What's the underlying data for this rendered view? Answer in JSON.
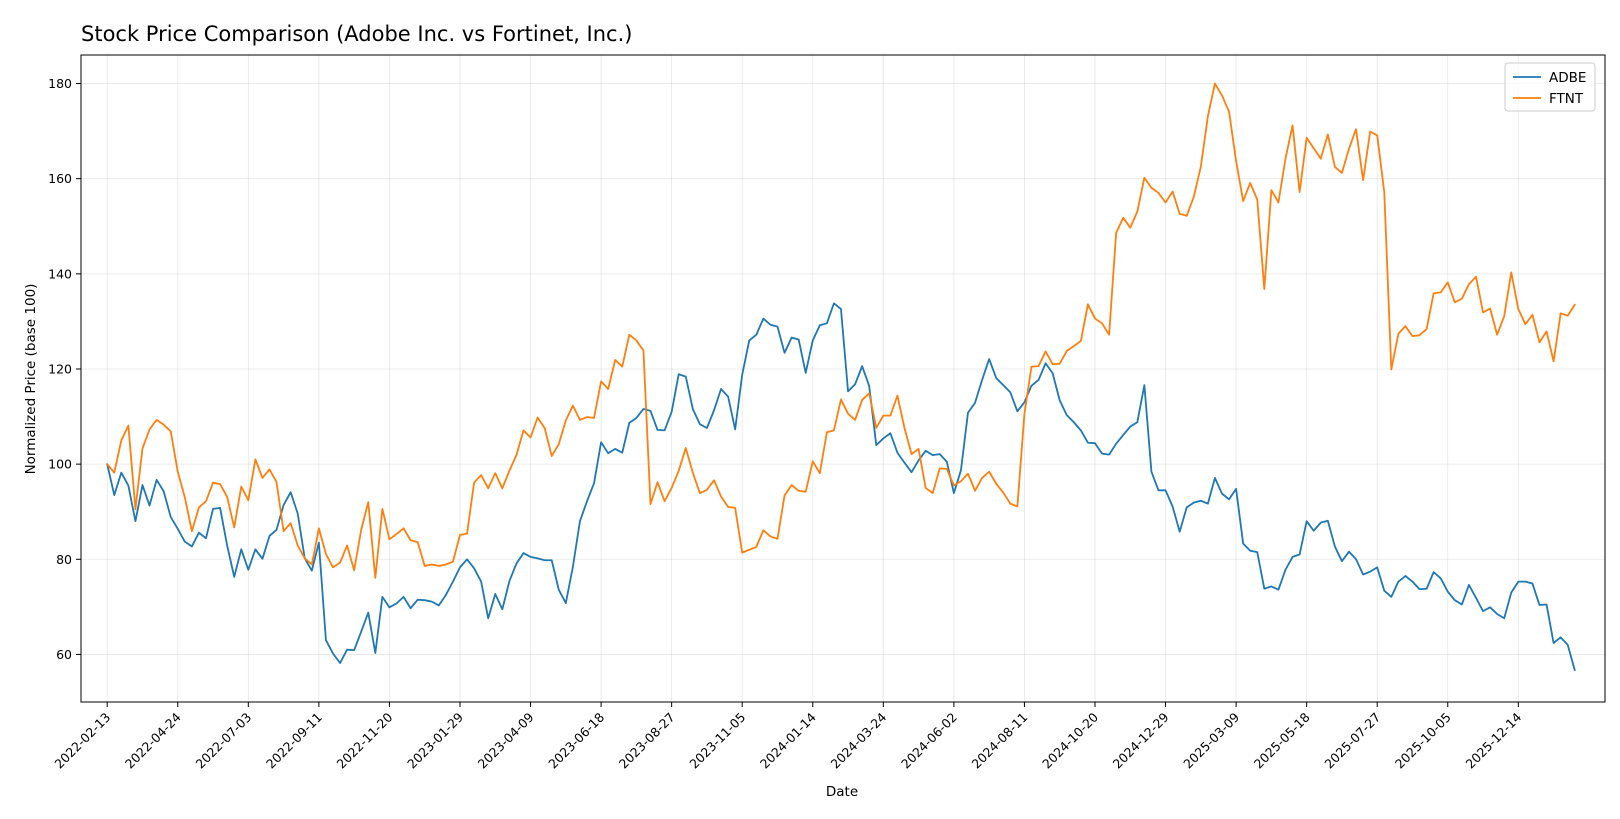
{
  "chart_data": {
    "type": "line",
    "title": "Stock Price Comparison (Adobe Inc. vs Fortinet, Inc.)",
    "xlabel": "Date",
    "ylabel": "Normalized Price (base 100)",
    "ylim": [
      50,
      186
    ],
    "yticks": [
      60,
      80,
      100,
      120,
      140,
      160,
      180
    ],
    "xlim": [
      "2022-01-18",
      "2026-03-10"
    ],
    "xticks": [
      "2022-02-13",
      "2022-04-24",
      "2022-07-03",
      "2022-09-11",
      "2022-11-20",
      "2023-01-29",
      "2023-04-09",
      "2023-06-18",
      "2023-08-27",
      "2023-11-05",
      "2024-01-14",
      "2024-03-24",
      "2024-06-02",
      "2024-08-11",
      "2024-10-20",
      "2024-12-29",
      "2025-03-09",
      "2025-05-18",
      "2025-07-27",
      "2025-10-05",
      "2025-12-14"
    ],
    "grid": true,
    "legend_position": "top-right",
    "x_start": "2022-02-13",
    "x_step_days": 7,
    "series": [
      {
        "name": "ADBE",
        "color": "#1f77b4",
        "values": [
          100.0,
          93.5,
          98.2,
          95.5,
          88.0,
          95.6,
          91.3,
          96.7,
          94.3,
          88.9,
          86.4,
          83.7,
          82.7,
          85.6,
          84.4,
          90.6,
          90.8,
          82.9,
          76.3,
          82.1,
          77.8,
          82.1,
          80.1,
          84.9,
          86.2,
          91.4,
          94.1,
          89.6,
          80.2,
          77.6,
          83.5,
          63.0,
          60.2,
          58.2,
          61.0,
          60.9,
          64.8,
          68.8,
          60.3,
          72.1,
          69.9,
          70.7,
          72.1,
          69.7,
          71.5,
          71.4,
          71.1,
          70.3,
          72.5,
          75.3,
          78.3,
          80.0,
          78.1,
          75.3,
          67.6,
          72.7,
          69.5,
          75.4,
          79.1,
          81.3,
          80.5,
          80.2,
          79.8,
          79.8,
          73.6,
          70.8,
          78.4,
          88.0,
          92.2,
          96.0,
          104.6,
          102.3,
          103.2,
          102.4,
          108.7,
          109.7,
          111.6,
          111.2,
          107.2,
          107.1,
          111.0,
          118.9,
          118.4,
          111.6,
          108.4,
          107.6,
          111.3,
          115.8,
          114.2,
          107.3,
          118.8,
          126.0,
          127.2,
          130.6,
          129.3,
          128.9,
          123.4,
          126.6,
          126.2,
          119.2,
          126.0,
          129.2,
          129.6,
          133.8,
          132.6,
          115.3,
          116.8,
          120.6,
          116.4,
          104.0,
          105.4,
          106.5,
          102.4,
          100.3,
          98.3,
          100.8,
          102.8,
          101.9,
          102.1,
          100.5,
          93.9,
          98.7,
          110.8,
          112.9,
          117.7,
          122.1,
          118.1,
          116.6,
          115.1,
          111.1,
          113.0,
          116.5,
          117.7,
          121.2,
          119.1,
          113.4,
          110.3,
          108.8,
          107.1,
          104.5,
          104.4,
          102.2,
          102.0,
          104.3,
          106.1,
          107.9,
          108.8,
          116.6,
          98.4,
          94.5,
          94.5,
          91.1,
          85.8,
          90.9,
          91.9,
          92.3,
          91.7,
          97.1,
          93.8,
          92.6,
          94.8,
          83.3,
          81.8,
          81.5,
          73.8,
          74.3,
          73.6,
          77.8,
          80.5,
          81.0,
          88.0,
          86.0,
          87.7,
          88.1,
          82.7,
          79.6,
          81.6,
          80.0,
          76.8,
          77.4,
          78.3,
          73.4,
          72.1,
          75.3,
          76.5,
          75.3,
          73.7,
          73.8,
          77.3,
          76.0,
          73.2,
          71.4,
          70.5,
          74.6,
          71.9,
          69.1,
          69.9,
          68.5,
          67.6,
          73.0,
          75.3,
          75.3,
          74.9,
          70.4,
          70.5,
          62.4,
          63.6,
          62.0,
          56.7
        ]
      },
      {
        "name": "FTNT",
        "color": "#ff7f0e",
        "values": [
          100.0,
          98.2,
          105.0,
          108.1,
          90.5,
          103.3,
          107.3,
          109.3,
          108.3,
          106.9,
          98.4,
          93.0,
          85.9,
          90.9,
          92.2,
          96.1,
          95.8,
          93.1,
          86.7,
          95.3,
          92.4,
          101.0,
          97.1,
          98.9,
          96.2,
          85.9,
          87.6,
          82.9,
          80.2,
          78.9,
          86.5,
          81.1,
          78.3,
          79.3,
          82.9,
          77.7,
          86.2,
          92.0,
          76.1,
          90.6,
          84.2,
          85.3,
          86.5,
          84.0,
          83.6,
          78.6,
          78.9,
          78.6,
          78.9,
          79.5,
          85.1,
          85.4,
          96.1,
          97.7,
          94.9,
          98.1,
          94.9,
          98.6,
          101.9,
          107.1,
          105.6,
          109.8,
          107.6,
          101.7,
          104.2,
          109.2,
          112.3,
          109.3,
          109.9,
          109.7,
          117.4,
          115.8,
          121.9,
          120.5,
          127.2,
          126.0,
          123.9,
          91.6,
          96.2,
          92.2,
          95.0,
          98.6,
          103.4,
          98.2,
          93.9,
          94.6,
          96.6,
          93.2,
          91.0,
          90.8,
          81.4,
          82.0,
          82.6,
          86.1,
          84.8,
          84.3,
          93.4,
          95.6,
          94.4,
          94.2,
          100.6,
          98.1,
          106.7,
          107.1,
          113.6,
          110.6,
          109.3,
          113.5,
          114.9,
          107.6,
          110.2,
          110.2,
          114.4,
          107.6,
          102.1,
          103.2,
          95.0,
          93.9,
          99.1,
          99.0,
          95.5,
          96.4,
          98.0,
          94.4,
          97.1,
          98.4,
          95.9,
          94.0,
          91.7,
          91.1,
          110.6,
          120.5,
          120.6,
          123.7,
          121.0,
          121.1,
          123.8,
          124.8,
          125.9,
          133.6,
          130.6,
          129.6,
          127.2,
          148.6,
          151.8,
          149.7,
          153.1,
          160.2,
          158.1,
          157.0,
          155.0,
          157.3,
          152.6,
          152.2,
          156.2,
          162.5,
          173.1,
          180.0,
          177.5,
          174.1,
          163.7,
          155.3,
          159.1,
          155.6,
          136.8,
          157.6,
          155.0,
          164.2,
          171.2,
          157.2,
          168.6,
          166.4,
          164.2,
          169.3,
          162.5,
          161.2,
          166.3,
          170.4,
          159.7,
          169.9,
          169.1,
          157.2,
          119.9,
          127.4,
          129.0,
          126.9,
          127.1,
          128.4,
          135.9,
          136.1,
          138.2,
          134.0,
          134.8,
          137.8,
          139.4,
          131.9,
          132.7,
          127.2,
          131.1,
          140.3,
          132.6,
          129.4,
          131.4,
          125.6,
          127.9,
          121.6,
          131.7,
          131.2,
          133.5
        ]
      }
    ]
  }
}
